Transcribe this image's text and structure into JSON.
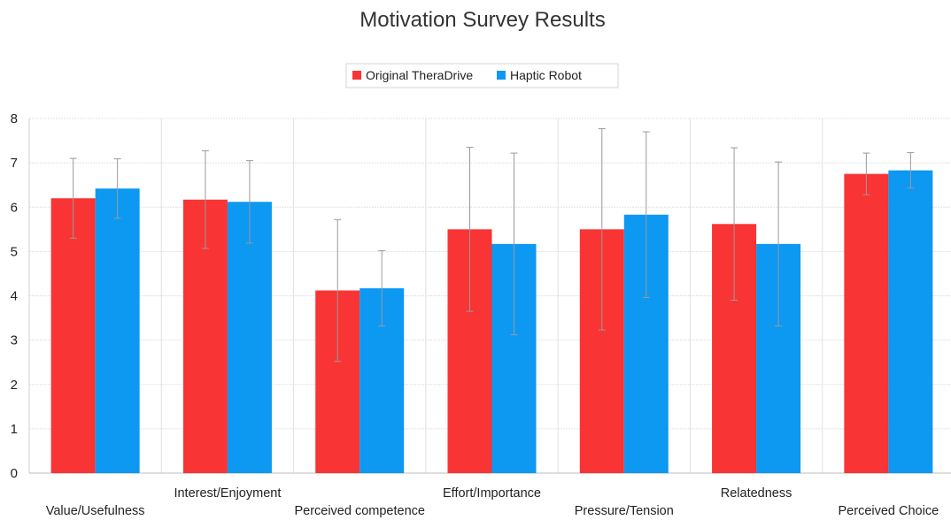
{
  "chart_data": {
    "type": "bar",
    "title": "Motivation Survey Results",
    "xlabel": "",
    "ylabel": "",
    "ylim": [
      0,
      8
    ],
    "yticks": [
      0,
      1,
      2,
      3,
      4,
      5,
      6,
      7,
      8
    ],
    "grid": true,
    "legend": "top-center",
    "categories": [
      "Value/Usefulness",
      "Interest/Enjoyment",
      "Perceived competence",
      "Effort/Importance",
      "Pressure/Tension",
      "Relatedness",
      "Perceived Choice"
    ],
    "series": [
      {
        "name": "Original TheraDrive",
        "color": "#f83434",
        "values": [
          6.2,
          6.17,
          4.12,
          5.5,
          5.5,
          5.62,
          6.75
        ],
        "error": [
          0.9,
          1.1,
          1.6,
          1.85,
          2.27,
          1.72,
          0.47
        ]
      },
      {
        "name": "Haptic Robot",
        "color": "#0d98f2",
        "values": [
          6.42,
          6.12,
          4.17,
          5.17,
          5.83,
          5.17,
          6.83
        ],
        "error": [
          0.67,
          0.93,
          0.85,
          2.05,
          1.87,
          1.85,
          0.4
        ]
      }
    ]
  }
}
